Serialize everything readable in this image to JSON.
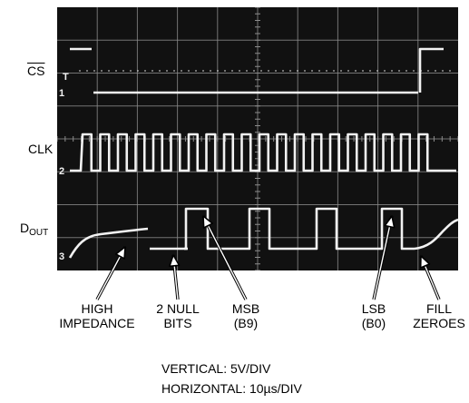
{
  "chart_data": {
    "type": "line",
    "title": "",
    "colors": {
      "screen": "#111111",
      "trace": "#f2f2f2",
      "grid": "#8c8c8c"
    },
    "signals": [
      {
        "name": "CS",
        "overline": true,
        "channel_marker": "1",
        "trigger_marker": "T"
      },
      {
        "name": "CLK",
        "channel_marker": "2"
      },
      {
        "name_main": "D",
        "name_sub": "OUT",
        "channel_marker": "3"
      }
    ],
    "annotations": [
      {
        "lines": [
          "HIGH",
          "IMPEDANCE"
        ]
      },
      {
        "lines": [
          "2 NULL",
          "BITS"
        ]
      },
      {
        "lines": [
          "MSB",
          "(B9)"
        ]
      },
      {
        "lines": [
          "LSB",
          "(B0)"
        ]
      },
      {
        "lines": [
          "FILL",
          "ZEROES"
        ]
      }
    ],
    "scale": {
      "vertical": "VERTICAL: 5V/DIV",
      "horizontal": "HORIZONTAL: 10µs/DIV"
    }
  }
}
